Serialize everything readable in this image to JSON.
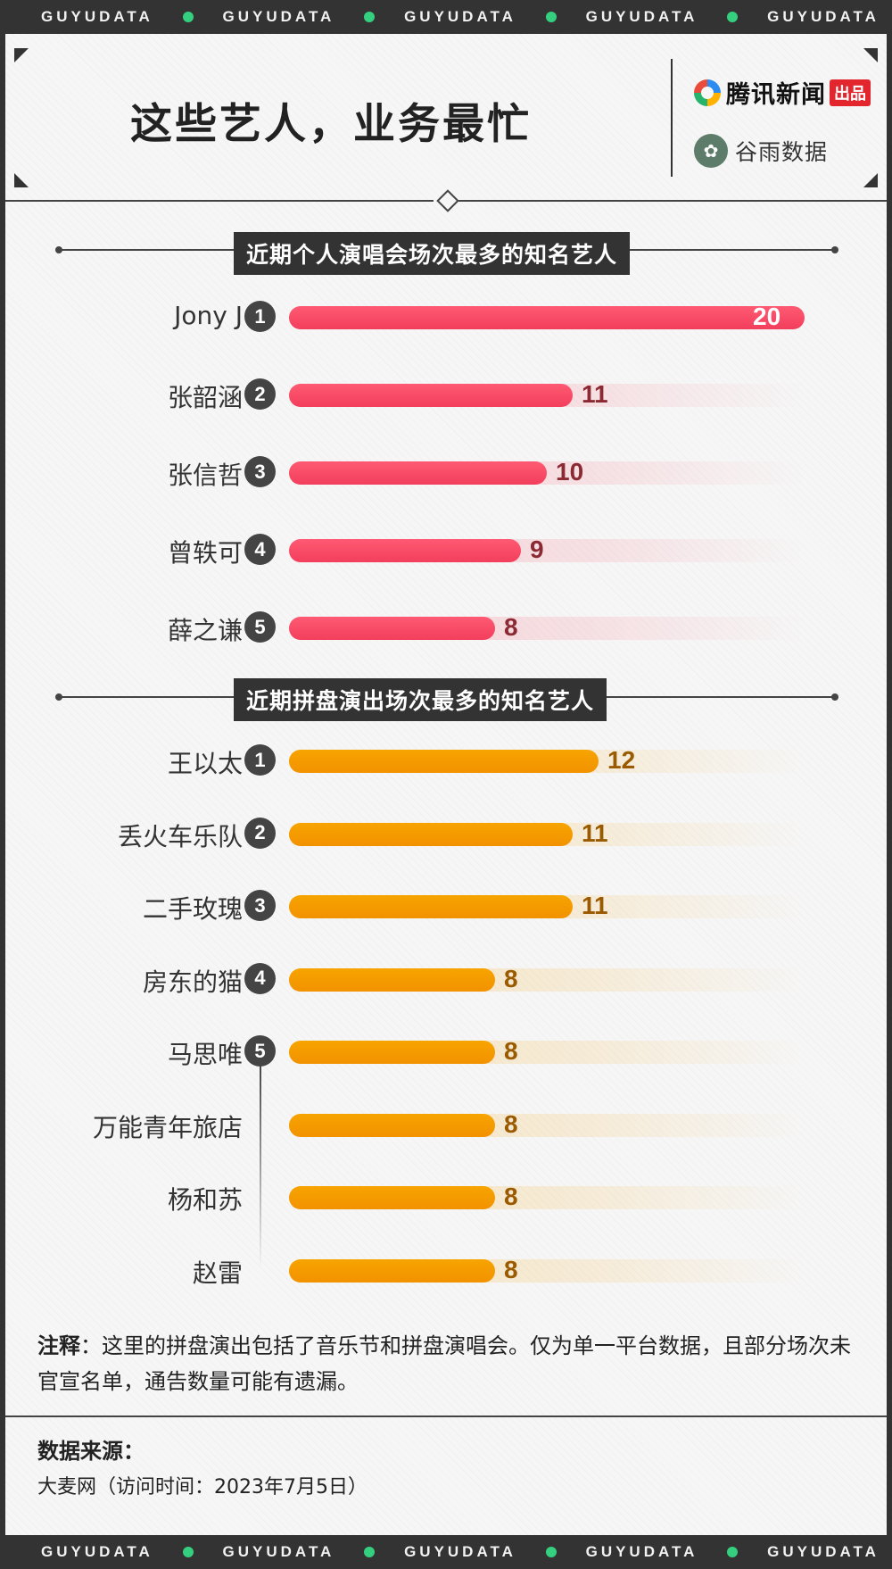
{
  "brand_strip": [
    "GUYUDATA",
    "GUYUDATA",
    "GUYUDATA",
    "GUYUDATA",
    "GUYUDATA"
  ],
  "header": {
    "title": "这些艺人，业务最忙",
    "logo_tencent": "腾讯新闻",
    "logo_tencent_badge": "出品",
    "logo_guyu": "谷雨数据"
  },
  "chart_data": [
    {
      "type": "bar",
      "title": "近期个人演唱会场次最多的知名艺人",
      "categories": [
        "Jony J",
        "张韶涵",
        "张信哲",
        "曾轶可",
        "薛之谦"
      ],
      "ranks": [
        "1",
        "2",
        "3",
        "4",
        "5"
      ],
      "values": [
        20,
        11,
        10,
        9,
        8
      ],
      "xlim": [
        0,
        20
      ],
      "color": "#f64860"
    },
    {
      "type": "bar",
      "title": "近期拼盘演出场次最多的知名艺人",
      "categories": [
        "王以太",
        "丢火车乐队",
        "二手玫瑰",
        "房东的猫",
        "马思唯",
        "万能青年旅店",
        "杨和苏",
        "赵雷"
      ],
      "ranks": [
        "1",
        "2",
        "3",
        "4",
        "5",
        "",
        "",
        ""
      ],
      "values": [
        12,
        11,
        11,
        8,
        8,
        8,
        8,
        8
      ],
      "xlim": [
        0,
        20
      ],
      "color": "#f5a000"
    }
  ],
  "note": {
    "label": "注释",
    "text": "：这里的拼盘演出包括了音乐节和拼盘演唱会。仅为单一平台数据，且部分场次未官宣名单，通告数量可能有遗漏。"
  },
  "source": {
    "label": "数据来源：",
    "text": "大麦网（访问时间：2023年7月5日）"
  }
}
